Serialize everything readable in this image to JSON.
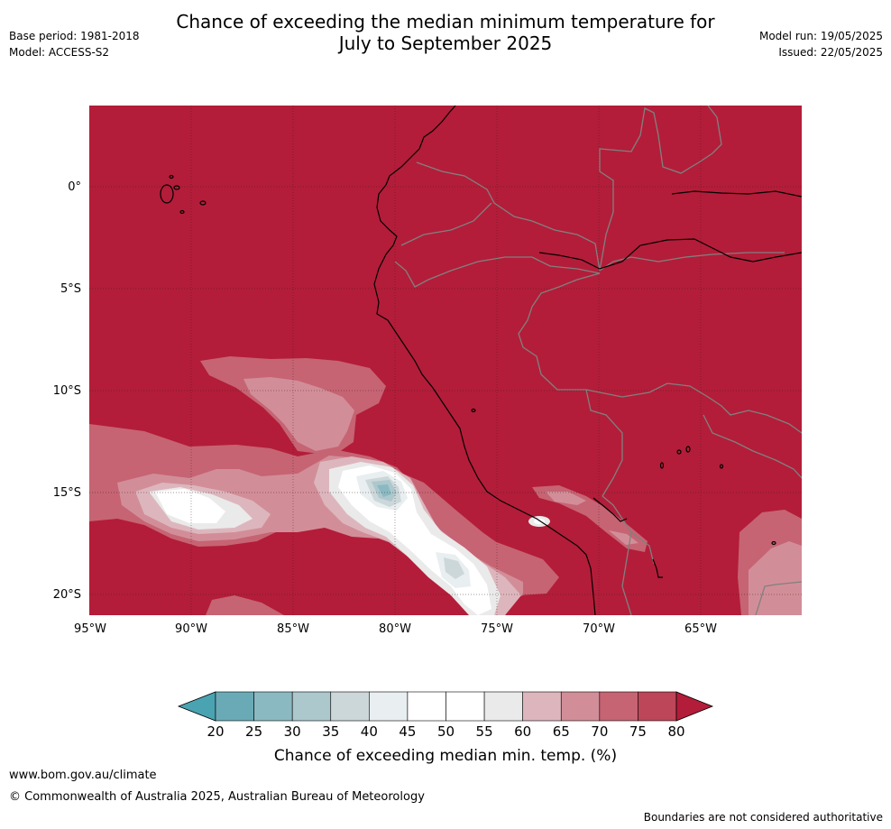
{
  "header": {
    "title_line1": "Chance of exceeding the median minimum temperature for",
    "title_line2": "July to September 2025",
    "base_period": "Base period: 1981-2018",
    "model": "Model: ACCESS-S2",
    "model_run": "Model run: 19/05/2025",
    "issued": "Issued: 22/05/2025"
  },
  "map": {
    "lat_labels": [
      "0°",
      "5°S",
      "10°S",
      "15°S",
      "20°S"
    ],
    "lon_labels": [
      "95°W",
      "90°W",
      "85°W",
      "80°W",
      "75°W",
      "70°W",
      "65°W"
    ],
    "background_color": "#b31d39",
    "coastline_color": "#000000",
    "border_color": "#808080"
  },
  "colorbar": {
    "ticks": [
      "20",
      "25",
      "30",
      "35",
      "40",
      "45",
      "50",
      "55",
      "60",
      "65",
      "70",
      "75",
      "80"
    ],
    "colors": [
      "#6aaab7",
      "#8bb9c1",
      "#adc8cd",
      "#ccd7da",
      "#e9eef0",
      "#ffffff",
      "#ffffff",
      "#eaeaea",
      "#ddb6bd",
      "#d28e98",
      "#c66473",
      "#bd4658"
    ],
    "low_arrow_color": "#4aa3b1",
    "high_arrow_color": "#b31d39",
    "label": "Chance of exceeding median min. temp. (%)"
  },
  "footer": {
    "url": "www.bom.gov.au/climate",
    "copyright": "© Commonwealth of Australia 2025, Australian Bureau of Meteorology",
    "disclaimer": "Boundaries are not considered authoritative"
  }
}
